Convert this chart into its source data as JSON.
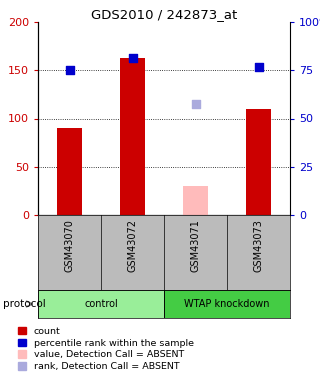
{
  "title": "GDS2010 / 242873_at",
  "samples": [
    "GSM43070",
    "GSM43072",
    "GSM43071",
    "GSM43073"
  ],
  "bar_values": [
    90,
    163,
    30,
    110
  ],
  "bar_colors": [
    "#cc0000",
    "#cc0000",
    "#ffbbbb",
    "#cc0000"
  ],
  "dot_values": [
    150,
    163,
    115,
    153
  ],
  "dot_colors": [
    "#0000cc",
    "#0000cc",
    "#aaaadd",
    "#0000cc"
  ],
  "ylim_left": [
    0,
    200
  ],
  "ylim_right": [
    0,
    100
  ],
  "yticks_left": [
    0,
    50,
    100,
    150,
    200
  ],
  "ytick_labels_left": [
    "0",
    "50",
    "100",
    "150",
    "200"
  ],
  "yticks_right": [
    0,
    25,
    50,
    75,
    100
  ],
  "ytick_labels_right": [
    "0",
    "25",
    "50",
    "75",
    "100%"
  ],
  "groups": [
    {
      "label": "control",
      "start": 0,
      "end": 1,
      "color": "#99ee99"
    },
    {
      "label": "WTAP knockdown",
      "start": 2,
      "end": 3,
      "color": "#44cc44"
    }
  ],
  "sample_label_bg": "#bbbbbb",
  "protocol_label": "protocol",
  "tick_color_left": "#cc0000",
  "tick_color_right": "#0000cc",
  "grid_color": "#000000",
  "bg_color": "#ffffff",
  "legend_items": [
    {
      "label": "count",
      "color": "#cc0000"
    },
    {
      "label": "percentile rank within the sample",
      "color": "#0000cc"
    },
    {
      "label": "value, Detection Call = ABSENT",
      "color": "#ffbbbb"
    },
    {
      "label": "rank, Detection Call = ABSENT",
      "color": "#aaaadd"
    }
  ]
}
